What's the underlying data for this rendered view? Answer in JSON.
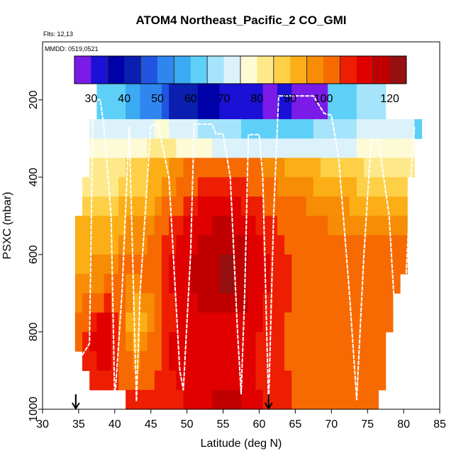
{
  "chart_data": {
    "type": "heatmap",
    "title": "ATOM4 Northeast_Pacific_2 CO_GMI",
    "flights_label": "Flts: 12,13",
    "dates_label": "MMDD: 0519,0521",
    "xlabel": "Latitude (deg N)",
    "ylabel": "PSXC (mbar)",
    "xlim": [
      30,
      85
    ],
    "ylim": [
      1000,
      50
    ],
    "x_ticks": [
      30,
      35,
      40,
      45,
      50,
      55,
      60,
      65,
      70,
      75,
      80,
      85
    ],
    "y_ticks": [
      200,
      400,
      600,
      800,
      1000
    ],
    "colorbar": {
      "bounds": [
        25,
        30,
        35,
        40,
        45,
        50,
        55,
        60,
        65,
        70,
        75,
        80,
        85,
        90,
        95,
        100,
        105,
        110,
        115,
        120,
        125
      ],
      "colors": [
        "#7b1be8",
        "#1a10d6",
        "#0000a8",
        "#0a1fb0",
        "#1f55e0",
        "#2f86ee",
        "#3aaaf2",
        "#5ed0f8",
        "#a5e4fa",
        "#dcf2fb",
        "#fdfbd6",
        "#fde98a",
        "#fed048",
        "#fcae16",
        "#f78c05",
        "#f76a02",
        "#ee1e02",
        "#e00000",
        "#c00000",
        "#951010"
      ],
      "tick_labels": [
        30,
        40,
        50,
        60,
        70,
        80,
        90,
        100,
        120
      ]
    },
    "lat_edges": [
      34.5,
      35.5,
      36.5,
      37.5,
      38.5,
      39.5,
      40.5,
      41.5,
      42.5,
      43.5,
      44.5,
      45.5,
      46.5,
      47.5,
      48.5,
      49.5,
      50.5,
      51.5,
      52.5,
      53.5,
      54.5,
      55.5,
      56.5,
      57.5,
      58.5,
      59.5,
      60.5,
      61.5,
      62.5,
      63.5,
      64.5,
      65.5,
      66.5,
      67.5,
      68.5,
      69.5,
      70.5,
      71.5,
      72.5,
      73.5,
      74.5,
      75.5,
      76.5,
      77.5,
      78.5,
      79.5,
      80.5,
      81.5,
      82.5
    ],
    "pressure_edges": [
      150,
      250,
      300,
      350,
      400,
      450,
      500,
      550,
      600,
      650,
      700,
      750,
      800,
      850,
      900,
      950,
      1000
    ],
    "co_grid": [
      [
        null,
        null,
        null,
        60,
        62,
        62,
        60,
        58,
        56,
        52,
        50,
        50,
        48,
        44,
        42,
        40,
        40,
        38,
        36,
        35,
        34,
        33,
        32,
        32,
        30,
        30,
        28,
        28,
        30,
        30,
        26,
        26,
        26,
        26,
        26,
        60,
        62,
        63,
        64,
        65,
        65,
        66,
        66,
        null,
        null,
        null,
        null,
        null
      ],
      [
        null,
        null,
        70,
        72,
        72,
        72,
        72,
        72,
        73,
        73,
        74,
        75,
        75,
        74,
        73,
        72,
        70,
        68,
        66,
        66,
        66,
        66,
        66,
        64,
        63,
        62,
        62,
        62,
        62,
        62,
        63,
        64,
        64,
        65,
        66,
        66,
        67,
        68,
        68,
        70,
        72,
        72,
        72,
        72,
        72,
        72,
        72,
        60
      ],
      [
        null,
        null,
        76,
        77,
        77,
        78,
        78,
        78,
        78,
        78,
        80,
        82,
        82,
        80,
        78,
        76,
        75,
        75,
        75,
        74,
        74,
        74,
        74,
        73,
        72,
        72,
        72,
        72,
        72,
        72,
        72,
        72,
        73,
        73,
        73,
        74,
        74,
        74,
        74,
        75,
        76,
        76,
        76,
        76,
        76,
        76,
        76,
        null
      ],
      [
        null,
        null,
        80,
        81,
        82,
        82,
        84,
        86,
        86,
        88,
        90,
        92,
        94,
        96,
        98,
        100,
        102,
        103,
        104,
        104,
        104,
        104,
        103,
        102,
        101,
        100,
        99,
        97,
        96,
        94,
        93,
        92,
        91,
        90,
        89,
        88,
        87,
        86,
        86,
        85,
        84,
        84,
        84,
        84,
        84,
        84,
        84,
        null
      ],
      [
        null,
        84,
        84,
        84,
        84,
        84,
        86,
        88,
        88,
        88,
        90,
        92,
        96,
        98,
        100,
        102,
        104,
        106,
        108,
        108,
        108,
        108,
        106,
        105,
        104,
        103,
        102,
        100,
        99,
        98,
        97,
        96,
        95,
        94,
        93,
        92,
        92,
        91,
        90,
        89,
        88,
        88,
        88,
        88,
        88,
        88,
        null,
        null
      ],
      [
        null,
        86,
        87,
        88,
        88,
        88,
        90,
        92,
        92,
        92,
        94,
        96,
        100,
        102,
        104,
        106,
        108,
        110,
        112,
        112,
        112,
        112,
        110,
        108,
        106,
        105,
        104,
        103,
        102,
        101,
        100,
        100,
        99,
        98,
        97,
        96,
        96,
        95,
        94,
        94,
        93,
        93,
        93,
        93,
        93,
        93,
        null,
        null
      ],
      [
        90,
        90,
        91,
        92,
        92,
        92,
        94,
        96,
        96,
        96,
        98,
        100,
        104,
        106,
        108,
        110,
        112,
        114,
        114,
        115,
        115,
        115,
        114,
        112,
        110,
        108,
        106,
        105,
        104,
        103,
        102,
        102,
        101,
        100,
        100,
        99,
        99,
        98,
        98,
        97,
        97,
        97,
        97,
        97,
        97,
        97,
        null,
        null
      ],
      [
        92,
        92,
        93,
        94,
        94,
        94,
        96,
        98,
        98,
        98,
        100,
        102,
        106,
        108,
        110,
        112,
        114,
        116,
        117,
        118,
        118,
        118,
        117,
        115,
        112,
        110,
        108,
        106,
        105,
        104,
        103,
        103,
        102,
        102,
        101,
        101,
        100,
        100,
        100,
        100,
        100,
        100,
        100,
        100,
        100,
        100,
        null,
        null
      ],
      [
        94,
        94,
        95,
        96,
        97,
        98,
        100,
        100,
        100,
        100,
        102,
        104,
        108,
        110,
        112,
        114,
        116,
        117,
        118,
        119,
        120,
        120,
        119,
        117,
        114,
        112,
        110,
        108,
        106,
        105,
        104,
        104,
        103,
        103,
        102,
        102,
        102,
        102,
        101,
        101,
        101,
        101,
        101,
        101,
        101,
        101,
        null,
        null
      ],
      [
        96,
        97,
        98,
        99,
        100,
        100,
        100,
        98,
        98,
        100,
        102,
        104,
        108,
        110,
        112,
        114,
        116,
        118,
        118,
        119,
        120,
        120,
        119,
        117,
        114,
        112,
        110,
        108,
        106,
        105,
        104,
        104,
        103,
        103,
        103,
        102,
        102,
        102,
        102,
        102,
        102,
        102,
        102,
        102,
        102,
        null,
        null,
        null
      ],
      [
        98,
        100,
        102,
        104,
        106,
        104,
        100,
        96,
        94,
        96,
        98,
        102,
        106,
        108,
        110,
        112,
        114,
        116,
        116,
        117,
        118,
        118,
        117,
        115,
        113,
        111,
        109,
        107,
        106,
        105,
        104,
        103,
        103,
        102,
        102,
        102,
        102,
        102,
        101,
        101,
        101,
        101,
        101,
        101,
        null,
        null,
        null,
        null
      ],
      [
        102,
        104,
        108,
        110,
        110,
        106,
        100,
        94,
        92,
        94,
        98,
        102,
        106,
        108,
        110,
        112,
        113,
        114,
        114,
        114,
        114,
        114,
        113,
        112,
        111,
        110,
        108,
        106,
        105,
        104,
        103,
        102,
        102,
        102,
        101,
        101,
        101,
        101,
        101,
        101,
        101,
        101,
        101,
        101,
        null,
        null,
        null,
        null
      ],
      [
        104,
        106,
        110,
        112,
        110,
        106,
        100,
        96,
        94,
        96,
        100,
        104,
        108,
        110,
        111,
        112,
        112,
        112,
        112,
        112,
        112,
        112,
        112,
        111,
        110,
        109,
        107,
        106,
        105,
        104,
        103,
        102,
        102,
        101,
        101,
        101,
        101,
        101,
        101,
        101,
        101,
        101,
        101,
        null,
        null,
        null,
        null,
        null
      ],
      [
        null,
        106,
        108,
        110,
        110,
        108,
        104,
        100,
        98,
        100,
        102,
        104,
        108,
        110,
        111,
        112,
        112,
        112,
        112,
        112,
        112,
        112,
        112,
        111,
        110,
        109,
        108,
        106,
        105,
        104,
        103,
        102,
        102,
        102,
        101,
        101,
        101,
        101,
        101,
        101,
        101,
        101,
        101,
        null,
        null,
        null,
        null,
        null
      ],
      [
        null,
        null,
        106,
        106,
        106,
        106,
        104,
        102,
        102,
        102,
        104,
        106,
        108,
        109,
        110,
        110,
        111,
        112,
        112,
        112,
        112,
        112,
        112,
        111,
        110,
        109,
        108,
        107,
        106,
        105,
        104,
        103,
        102,
        102,
        101,
        101,
        101,
        101,
        101,
        101,
        101,
        101,
        101,
        null,
        null,
        null,
        null,
        null
      ],
      [
        null,
        null,
        null,
        null,
        null,
        null,
        null,
        106,
        106,
        106,
        106,
        106,
        107,
        108,
        108,
        110,
        112,
        114,
        114,
        115,
        116,
        116,
        115,
        114,
        112,
        110,
        109,
        108,
        106,
        105,
        104,
        104,
        103,
        103,
        102,
        102,
        102,
        102,
        102,
        102,
        102,
        102,
        null,
        null,
        null,
        null,
        null,
        null
      ]
    ],
    "flight_track": [
      [
        35.5,
        860
      ],
      [
        36.5,
        830
      ],
      [
        37,
        200
      ],
      [
        38,
        200
      ],
      [
        38.5,
        270
      ],
      [
        39.5,
        500
      ],
      [
        40,
        980
      ],
      [
        41,
        700
      ],
      [
        42,
        270
      ],
      [
        43,
        980
      ],
      [
        43.5,
        700
      ],
      [
        45,
        265
      ],
      [
        46,
        265
      ],
      [
        47.5,
        400
      ],
      [
        49,
        900
      ],
      [
        49.5,
        950
      ],
      [
        50.5,
        600
      ],
      [
        51,
        263
      ],
      [
        53.5,
        263
      ],
      [
        54,
        288
      ],
      [
        55,
        288
      ],
      [
        56,
        400
      ],
      [
        57,
        800
      ],
      [
        57.5,
        960
      ],
      [
        58,
        700
      ],
      [
        58.5,
        290
      ],
      [
        60,
        290
      ],
      [
        60.5,
        400
      ],
      [
        61.3,
        990
      ],
      [
        62,
        500
      ],
      [
        62.7,
        190
      ],
      [
        67.5,
        190
      ],
      [
        69,
        235
      ],
      [
        70,
        240
      ],
      [
        71,
        350
      ],
      [
        72.5,
        700
      ],
      [
        73.5,
        975
      ],
      [
        74.5,
        600
      ],
      [
        75.5,
        305
      ],
      [
        76.5,
        305
      ],
      [
        78,
        500
      ],
      [
        79.5,
        980
      ],
      [
        81,
        400
      ],
      [
        81.5,
        270
      ]
    ],
    "markers": [
      {
        "lat": 34.6
      },
      {
        "lat": 61.3
      }
    ]
  }
}
